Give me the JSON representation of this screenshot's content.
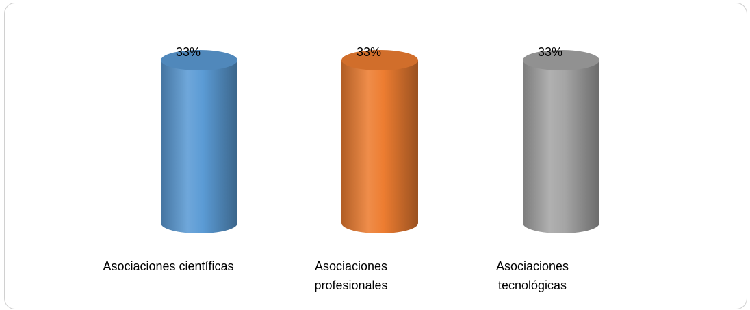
{
  "chart_data": {
    "type": "bar",
    "title": "",
    "categories": [
      "Asociaciones científicas",
      "Asociaciones profesionales",
      "Asociaciones tecnológicas"
    ],
    "category_lines": [
      [
        "Asociaciones científicas"
      ],
      [
        "Asociaciones",
        "profesionales"
      ],
      [
        "Asociaciones",
        "tecnológicas"
      ]
    ],
    "values": [
      0.33,
      0.33,
      0.33
    ],
    "data_labels": [
      "33%",
      "33%",
      "33%"
    ],
    "colors": [
      "#5b9bd5",
      "#ed7d31",
      "#a5a5a5"
    ],
    "ylim": [
      0,
      0.33
    ],
    "grid": false,
    "legend": "none"
  }
}
